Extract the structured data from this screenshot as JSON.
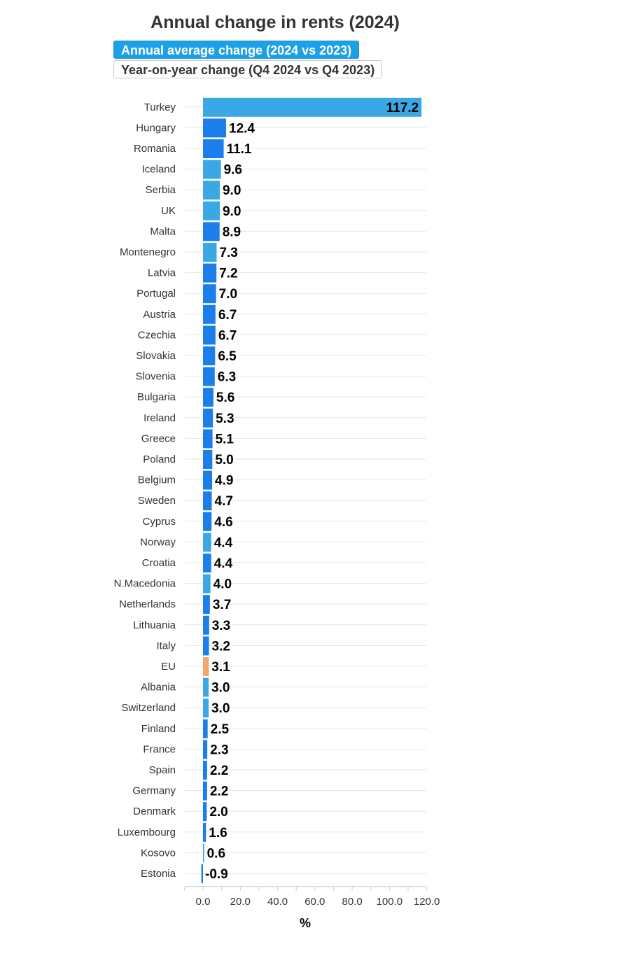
{
  "chart_data": {
    "type": "bar",
    "orientation": "horizontal",
    "title": "Annual change in rents (2024)",
    "toggles": [
      {
        "label": "Annual average change (2024 vs 2023)",
        "active": true
      },
      {
        "label": "Year-on-year change (Q4 2024 vs Q4 2023)",
        "active": false
      }
    ],
    "xlabel": "%",
    "xlim": [
      -10,
      120
    ],
    "xticks": [
      "0.0",
      "20.0",
      "40.0",
      "60.0",
      "80.0",
      "100.0",
      "120.0"
    ],
    "grid": true,
    "colors": {
      "eu": "#f0a868",
      "light": "#3aa8e4",
      "dark": "#1c7eeb"
    },
    "bars": [
      {
        "name": "Turkey",
        "value": 117.2,
        "label": "117.2",
        "group": "light"
      },
      {
        "name": "Hungary",
        "value": 12.4,
        "label": "12.4",
        "group": "dark"
      },
      {
        "name": "Romania",
        "value": 11.1,
        "label": "11.1",
        "group": "dark"
      },
      {
        "name": "Iceland",
        "value": 9.6,
        "label": "9.6",
        "group": "light"
      },
      {
        "name": "Serbia",
        "value": 9.0,
        "label": "9.0",
        "group": "light"
      },
      {
        "name": "UK",
        "value": 9.0,
        "label": "9.0",
        "group": "light"
      },
      {
        "name": "Malta",
        "value": 8.9,
        "label": "8.9",
        "group": "dark"
      },
      {
        "name": "Montenegro",
        "value": 7.3,
        "label": "7.3",
        "group": "light"
      },
      {
        "name": "Latvia",
        "value": 7.2,
        "label": "7.2",
        "group": "dark"
      },
      {
        "name": "Portugal",
        "value": 7.0,
        "label": "7.0",
        "group": "dark"
      },
      {
        "name": "Austria",
        "value": 6.7,
        "label": "6.7",
        "group": "dark"
      },
      {
        "name": "Czechia",
        "value": 6.7,
        "label": "6.7",
        "group": "dark"
      },
      {
        "name": "Slovakia",
        "value": 6.5,
        "label": "6.5",
        "group": "dark"
      },
      {
        "name": "Slovenia",
        "value": 6.3,
        "label": "6.3",
        "group": "dark"
      },
      {
        "name": "Bulgaria",
        "value": 5.6,
        "label": "5.6",
        "group": "dark"
      },
      {
        "name": "Ireland",
        "value": 5.3,
        "label": "5.3",
        "group": "dark"
      },
      {
        "name": "Greece",
        "value": 5.1,
        "label": "5.1",
        "group": "dark"
      },
      {
        "name": "Poland",
        "value": 5.0,
        "label": "5.0",
        "group": "dark"
      },
      {
        "name": "Belgium",
        "value": 4.9,
        "label": "4.9",
        "group": "dark"
      },
      {
        "name": "Sweden",
        "value": 4.7,
        "label": "4.7",
        "group": "dark"
      },
      {
        "name": "Cyprus",
        "value": 4.6,
        "label": "4.6",
        "group": "dark"
      },
      {
        "name": "Norway",
        "value": 4.4,
        "label": "4.4",
        "group": "light"
      },
      {
        "name": "Croatia",
        "value": 4.4,
        "label": "4.4",
        "group": "dark"
      },
      {
        "name": "N.Macedonia",
        "value": 4.0,
        "label": "4.0",
        "group": "light"
      },
      {
        "name": "Netherlands",
        "value": 3.7,
        "label": "3.7",
        "group": "dark"
      },
      {
        "name": "Lithuania",
        "value": 3.3,
        "label": "3.3",
        "group": "dark"
      },
      {
        "name": "Italy",
        "value": 3.2,
        "label": "3.2",
        "group": "dark"
      },
      {
        "name": "EU",
        "value": 3.1,
        "label": "3.1",
        "group": "eu"
      },
      {
        "name": "Albania",
        "value": 3.0,
        "label": "3.0",
        "group": "light"
      },
      {
        "name": "Switzerland",
        "value": 3.0,
        "label": "3.0",
        "group": "light"
      },
      {
        "name": "Finland",
        "value": 2.5,
        "label": "2.5",
        "group": "dark"
      },
      {
        "name": "France",
        "value": 2.3,
        "label": "2.3",
        "group": "dark"
      },
      {
        "name": "Spain",
        "value": 2.2,
        "label": "2.2",
        "group": "dark"
      },
      {
        "name": "Germany",
        "value": 2.2,
        "label": "2.2",
        "group": "dark"
      },
      {
        "name": "Denmark",
        "value": 2.0,
        "label": "2.0",
        "group": "dark"
      },
      {
        "name": "Luxembourg",
        "value": 1.6,
        "label": "1.6",
        "group": "dark"
      },
      {
        "name": "Kosovo",
        "value": 0.6,
        "label": "0.6",
        "group": "light"
      },
      {
        "name": "Estonia",
        "value": -0.9,
        "label": "-0.9",
        "group": "dark"
      }
    ]
  }
}
